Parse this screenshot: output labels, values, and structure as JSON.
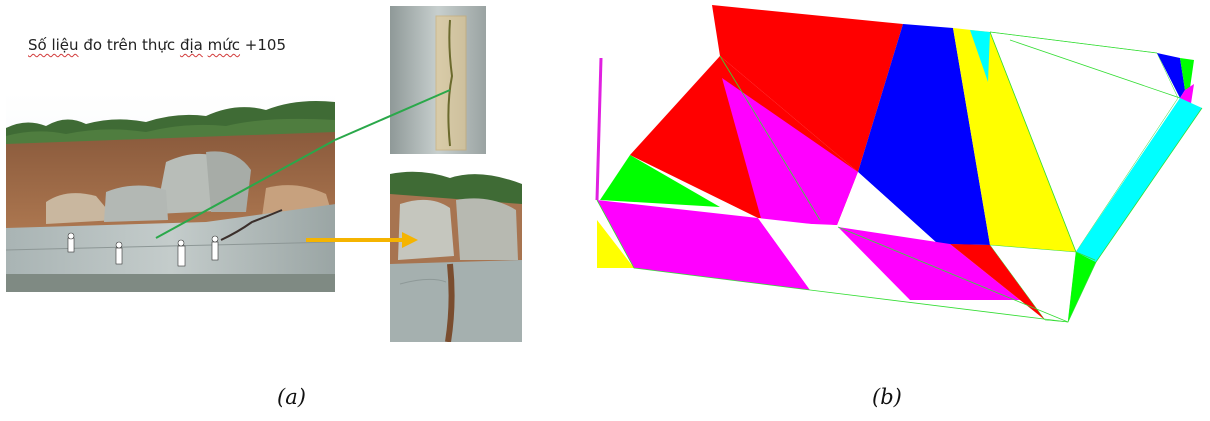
{
  "panel_a": {
    "title_parts": [
      "Số liệu",
      "đo",
      "trên thực",
      "địa",
      "mức",
      "+105"
    ],
    "caption": "(a)"
  },
  "panel_b": {
    "caption": "(b)",
    "colors": {
      "red": "#ff0000",
      "blue": "#0000ff",
      "magenta": "#ff00ff",
      "yellow": "#ffff00",
      "green": "#00ff00",
      "cyan": "#00ffff",
      "white": "#ffffff",
      "edge_green": "#33dd33",
      "edge_magenta": "#e020e0"
    }
  }
}
